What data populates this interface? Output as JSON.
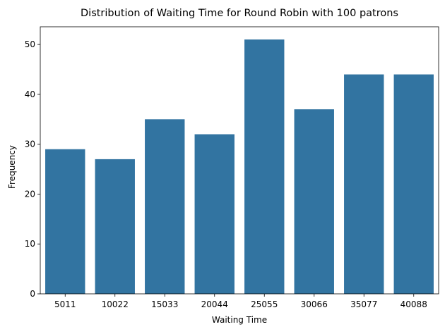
{
  "chart_data": {
    "type": "bar",
    "title": "Distribution of Waiting Time for Round Robin with 100 patrons",
    "xlabel": "Waiting Time",
    "ylabel": "Frequency",
    "categories": [
      "5011",
      "10022",
      "15033",
      "20044",
      "25055",
      "30066",
      "35077",
      "40088"
    ],
    "values": [
      29,
      27,
      35,
      32,
      51,
      37,
      44,
      44
    ],
    "ylim": [
      0,
      53.55
    ],
    "yticks": [
      0,
      10,
      20,
      30,
      40,
      50
    ],
    "grid": false,
    "legend": "none",
    "bar_color": "#3274a1"
  }
}
